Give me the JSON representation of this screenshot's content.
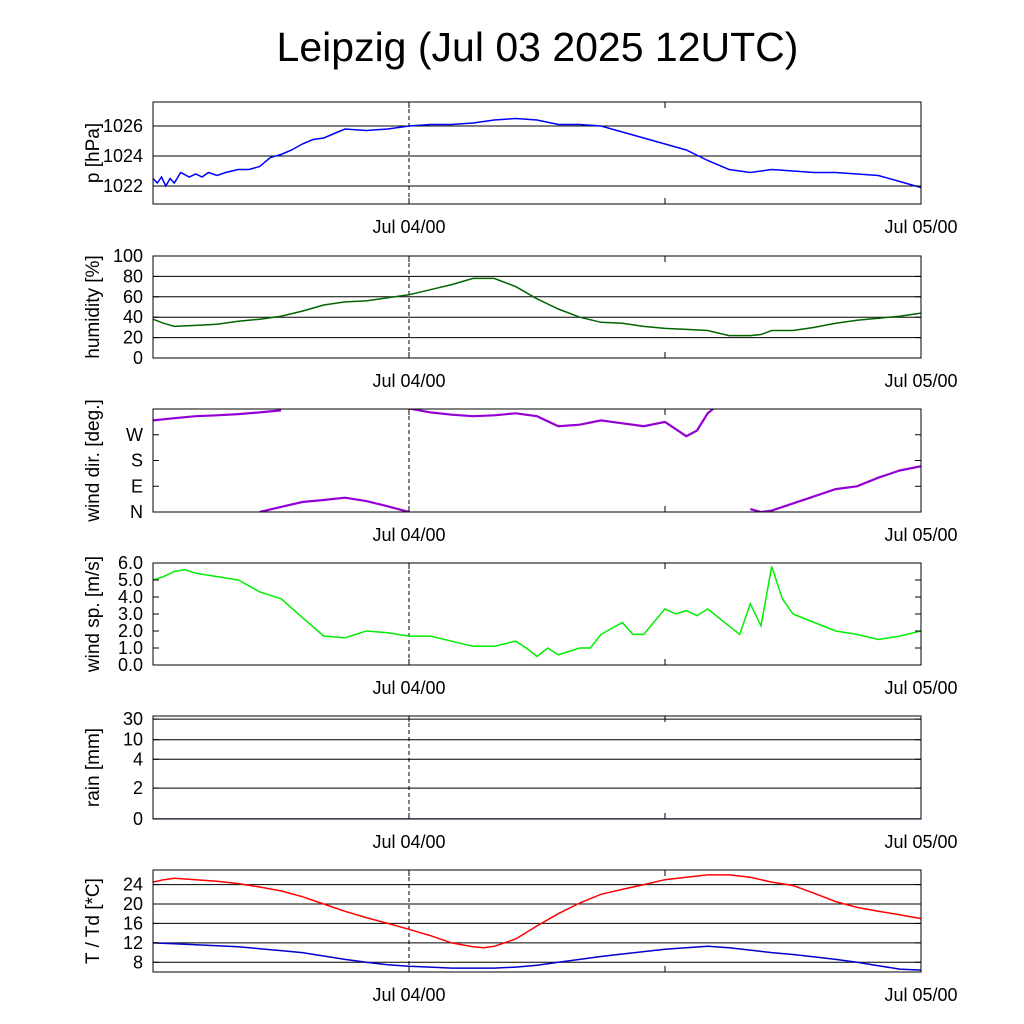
{
  "title": "Leipzig (Jul 03 2025 12UTC)",
  "chart_data": [
    {
      "type": "line",
      "ylabel": "p [hPa]",
      "x_unit": "hours since Jul 03 2025 12UTC",
      "xlim": [
        0,
        36
      ],
      "x_ticks": [
        {
          "x": 12,
          "label": "Jul 04/00"
        },
        {
          "x": 24,
          "label": ""
        },
        {
          "x": 36,
          "label": "Jul 05/00"
        }
      ],
      "ylim": [
        1020.8,
        1027.6
      ],
      "yticks": [
        1022,
        1024,
        1026
      ],
      "ytick_labels": [
        "1022",
        "1024",
        "1026"
      ],
      "grid": true,
      "colors": {
        "series": "#0000ff"
      },
      "series": [
        {
          "name": "",
          "x": [
            0,
            0.2,
            0.4,
            0.6,
            0.8,
            1.0,
            1.3,
            1.7,
            2.0,
            2.3,
            2.6,
            3.0,
            3.4,
            3.7,
            4.0,
            4.5,
            5.0,
            5.5,
            6.0,
            6.5,
            7.0,
            7.5,
            8.0,
            8.5,
            9.0,
            10.0,
            11.0,
            12.0,
            13.0,
            14.0,
            15.0,
            16.0,
            17.0,
            18.0,
            19.0,
            20.0,
            21.0,
            22.0,
            23.0,
            24.0,
            25.0,
            26.0,
            27.0,
            28.0,
            29.0,
            30.0,
            31.0,
            32.0,
            33.0,
            34.0,
            35.0,
            36.0
          ],
          "values": [
            1022.5,
            1022.2,
            1022.6,
            1022.0,
            1022.5,
            1022.2,
            1022.9,
            1022.6,
            1022.8,
            1022.6,
            1022.9,
            1022.7,
            1022.9,
            1023.0,
            1023.1,
            1023.1,
            1023.3,
            1023.9,
            1024.1,
            1024.4,
            1024.8,
            1025.1,
            1025.2,
            1025.5,
            1025.8,
            1025.7,
            1025.8,
            1026.0,
            1026.1,
            1026.1,
            1026.2,
            1026.4,
            1026.5,
            1026.4,
            1026.1,
            1026.1,
            1026.0,
            1025.6,
            1025.2,
            1024.8,
            1024.4,
            1023.7,
            1023.1,
            1022.9,
            1023.1,
            1023.0,
            1022.9,
            1022.9,
            1022.8,
            1022.7,
            1022.3,
            1021.9
          ]
        }
      ]
    },
    {
      "type": "line",
      "ylabel": "humidity [%]",
      "x_unit": "hours since Jul 03 2025 12UTC",
      "xlim": [
        0,
        36
      ],
      "x_ticks": [
        {
          "x": 12,
          "label": "Jul 04/00"
        },
        {
          "x": 24,
          "label": ""
        },
        {
          "x": 36,
          "label": "Jul 05/00"
        }
      ],
      "ylim": [
        0,
        100
      ],
      "yticks": [
        0,
        20,
        40,
        60,
        80,
        100
      ],
      "ytick_labels": [
        "0",
        "20",
        "40",
        "60",
        "80",
        "100"
      ],
      "grid": true,
      "colors": {
        "series": "#006400"
      },
      "series": [
        {
          "name": "",
          "x": [
            0,
            0.5,
            1.0,
            2.0,
            3.0,
            4.0,
            5.0,
            6.0,
            7.0,
            8.0,
            9.0,
            10.0,
            11.0,
            12.0,
            13.0,
            14.0,
            15.0,
            16.0,
            17.0,
            18.0,
            19.0,
            20.0,
            21.0,
            22.0,
            23.0,
            24.0,
            25.0,
            26.0,
            27.0,
            28.0,
            28.5,
            29.0,
            30.0,
            31.0,
            32.0,
            33.0,
            34.0,
            35.0,
            36.0
          ],
          "values": [
            38,
            34,
            31,
            32,
            33,
            36,
            38,
            41,
            46,
            52,
            55,
            56,
            59,
            62,
            67,
            72,
            78,
            78,
            70,
            58,
            48,
            40,
            35,
            34,
            31,
            29,
            28,
            27,
            22,
            22,
            23,
            27,
            27,
            30,
            34,
            37,
            39,
            41,
            44
          ]
        }
      ]
    },
    {
      "type": "line",
      "ylabel": "wind dir. [deg.]",
      "x_unit": "hours since Jul 03 2025 12UTC",
      "xlim": [
        0,
        36
      ],
      "x_ticks": [
        {
          "x": 12,
          "label": "Jul 04/00"
        },
        {
          "x": 24,
          "label": ""
        },
        {
          "x": 36,
          "label": "Jul 05/00"
        }
      ],
      "ylim": [
        0,
        360
      ],
      "yticks": [
        0,
        90,
        180,
        270
      ],
      "ytick_labels": [
        "N",
        "E",
        "S",
        "W"
      ],
      "grid": false,
      "colors": {
        "series": "#9400d3"
      },
      "series": [
        {
          "name": "",
          "x": [
            0,
            1,
            2,
            3,
            4,
            5,
            6,
            7,
            8,
            9,
            10,
            11,
            12,
            13,
            14,
            15,
            16,
            17,
            18,
            19,
            20,
            21,
            22,
            23,
            24,
            25,
            25.5,
            26,
            26.5,
            27,
            28,
            28.5,
            29,
            30,
            31,
            32,
            33,
            34,
            35,
            36
          ],
          "values": [
            320,
            328,
            335,
            338,
            342,
            348,
            355,
            null,
            null,
            null,
            null,
            null,
            362,
            348,
            340,
            335,
            338,
            345,
            335,
            300,
            305,
            320,
            310,
            300,
            315,
            265,
            285,
            345,
            375,
            null,
            10,
            0,
            5,
            30,
            55,
            80,
            90,
            120,
            145,
            160
          ]
        },
        {
          "name": "",
          "x": [
            5,
            6,
            7,
            8,
            9,
            10,
            11,
            12
          ],
          "values": [
            0,
            18,
            35,
            42,
            50,
            38,
            20,
            0
          ]
        }
      ]
    },
    {
      "type": "line",
      "ylabel": "wind sp. [m/s]",
      "x_unit": "hours since Jul 03 2025 12UTC",
      "xlim": [
        0,
        36
      ],
      "x_ticks": [
        {
          "x": 12,
          "label": "Jul 04/00"
        },
        {
          "x": 24,
          "label": ""
        },
        {
          "x": 36,
          "label": "Jul 05/00"
        }
      ],
      "ylim": [
        0,
        6
      ],
      "yticks": [
        0,
        1,
        2,
        3,
        4,
        5,
        6
      ],
      "ytick_labels": [
        "0.0",
        "1.0",
        "2.0",
        "3.0",
        "4.0",
        "5.0",
        "6.0"
      ],
      "grid": false,
      "colors": {
        "series": "#00ee00"
      },
      "series": [
        {
          "name": "",
          "x": [
            0,
            0.5,
            1.0,
            1.5,
            2.0,
            3.0,
            4.0,
            5.0,
            5.5,
            6.0,
            7.0,
            8.0,
            9.0,
            10.0,
            11.0,
            12.0,
            13.0,
            14.0,
            15.0,
            16.0,
            17.0,
            17.5,
            18.0,
            18.5,
            19.0,
            19.5,
            20.0,
            20.5,
            21.0,
            22.0,
            22.5,
            23.0,
            24.0,
            24.5,
            25.0,
            25.5,
            26.0,
            27.0,
            27.5,
            28.0,
            28.5,
            29.0,
            29.5,
            30.0,
            31.0,
            32.0,
            33.0,
            34.0,
            35.0,
            36.0
          ],
          "values": [
            5.0,
            5.2,
            5.5,
            5.6,
            5.4,
            5.2,
            5.0,
            4.3,
            4.1,
            3.9,
            2.8,
            1.7,
            1.6,
            2.0,
            1.9,
            1.7,
            1.7,
            1.4,
            1.1,
            1.1,
            1.4,
            1.0,
            0.5,
            1.0,
            0.6,
            0.8,
            1.0,
            1.0,
            1.8,
            2.5,
            1.8,
            1.8,
            3.3,
            3.0,
            3.2,
            2.9,
            3.3,
            2.3,
            1.8,
            3.6,
            2.3,
            5.8,
            3.9,
            3.0,
            2.5,
            2.0,
            1.8,
            1.5,
            1.7,
            2.0
          ]
        }
      ]
    },
    {
      "type": "line",
      "ylabel": "rain [mm]",
      "x_unit": "hours since Jul 03 2025 12UTC",
      "xlim": [
        0,
        36
      ],
      "x_ticks": [
        {
          "x": 12,
          "label": "Jul 04/00"
        },
        {
          "x": 24,
          "label": ""
        },
        {
          "x": 36,
          "label": "Jul 05/00"
        }
      ],
      "scale": "nonlinear",
      "ylim": [
        0,
        30
      ],
      "yticks": [
        0,
        2,
        4,
        10,
        30
      ],
      "ytick_labels": [
        "0",
        "2",
        "4",
        "10",
        "30"
      ],
      "grid": true,
      "colors": {
        "series": "#00008b"
      },
      "series": [
        {
          "name": "",
          "x": [
            0,
            36
          ],
          "values": [
            0,
            0
          ]
        }
      ]
    },
    {
      "type": "line",
      "ylabel": "T / Td [*C]",
      "x_unit": "hours since Jul 03 2025 12UTC",
      "xlim": [
        0,
        36
      ],
      "x_ticks": [
        {
          "x": 12,
          "label": "Jul 04/00"
        },
        {
          "x": 24,
          "label": ""
        },
        {
          "x": 36,
          "label": "Jul 05/00"
        }
      ],
      "ylim": [
        6,
        27
      ],
      "yticks": [
        8,
        12,
        16,
        20,
        24
      ],
      "ytick_labels": [
        "8",
        "12",
        "16",
        "20",
        "24"
      ],
      "grid": true,
      "colors": {
        "T": "#ff0000",
        "Td": "#0000cc"
      },
      "series": [
        {
          "name": "",
          "color_key": "T",
          "x": [
            0,
            0.5,
            1.0,
            2.0,
            3.0,
            4.0,
            5.0,
            6.0,
            7.0,
            8.0,
            9.0,
            10.0,
            11.0,
            12.0,
            13.0,
            14.0,
            15.0,
            15.5,
            16.0,
            17.0,
            18.0,
            19.0,
            20.0,
            21.0,
            22.0,
            23.0,
            24.0,
            25.0,
            26.0,
            27.0,
            28.0,
            29.0,
            30.0,
            31.0,
            32.0,
            33.0,
            34.0,
            35.0,
            36.0
          ],
          "values": [
            24.5,
            25.0,
            25.3,
            25.0,
            24.7,
            24.2,
            23.5,
            22.7,
            21.5,
            20.0,
            18.5,
            17.2,
            16.0,
            14.8,
            13.5,
            12.0,
            11.2,
            11.0,
            11.3,
            12.8,
            15.5,
            18.0,
            20.2,
            22.0,
            23.0,
            24.0,
            25.0,
            25.5,
            26.0,
            26.0,
            25.5,
            24.5,
            23.8,
            22.2,
            20.5,
            19.3,
            18.5,
            17.8,
            17.0
          ]
        },
        {
          "name": "",
          "color_key": "Td",
          "x": [
            0,
            1,
            2,
            3,
            4,
            5,
            6,
            7,
            8,
            9,
            10,
            11,
            12,
            13,
            14,
            15,
            16,
            17,
            18,
            19,
            20,
            21,
            22,
            23,
            24,
            25,
            26,
            27,
            28,
            29,
            30,
            31,
            32,
            33,
            34,
            35,
            36
          ],
          "values": [
            12.0,
            11.8,
            11.6,
            11.4,
            11.2,
            10.8,
            10.4,
            10.0,
            9.3,
            8.6,
            8.0,
            7.5,
            7.2,
            7.0,
            6.8,
            6.8,
            6.8,
            7.0,
            7.4,
            8.0,
            8.6,
            9.2,
            9.7,
            10.2,
            10.7,
            11.0,
            11.3,
            11.0,
            10.5,
            10.0,
            9.6,
            9.1,
            8.6,
            8.0,
            7.3,
            6.6,
            6.4
          ]
        }
      ]
    }
  ]
}
